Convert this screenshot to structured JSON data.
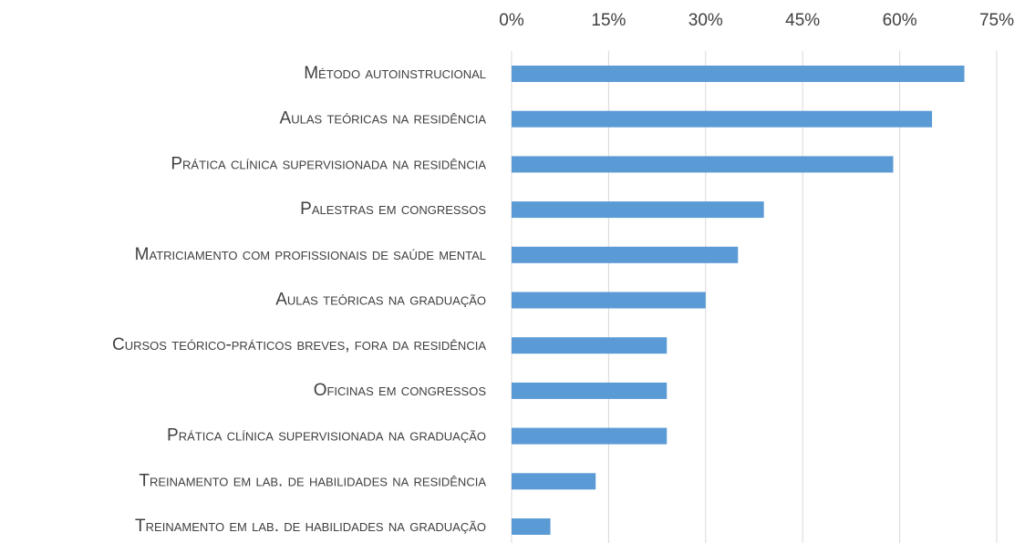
{
  "chart_data": {
    "type": "bar",
    "orientation": "horizontal",
    "categories": [
      "Método autoinstrucional",
      "Aulas teóricas na residência",
      "Prática clínica supervisionada na residência",
      "Palestras em congressos",
      "Matriciamento com profissionais de saúde mental",
      "Aulas teóricas na graduação",
      "Cursos teórico-práticos breves, fora da residência",
      "Oficinas em congressos",
      "Prática clínica supervisionada na graduação",
      "Treinamento em lab. de habilidades na residência",
      "Treinamento em lab. de habilidades na graduação"
    ],
    "values": [
      70,
      65,
      59,
      39,
      35,
      30,
      24,
      24,
      24,
      13,
      6
    ],
    "color": "#5b9bd5",
    "xlim": [
      0,
      75
    ],
    "xticks": [
      {
        "value": 0,
        "label": "0%"
      },
      {
        "value": 15,
        "label": "15%"
      },
      {
        "value": 30,
        "label": "30%"
      },
      {
        "value": 45,
        "label": "45%"
      },
      {
        "value": 60,
        "label": "60%"
      },
      {
        "value": 75,
        "label": "75%"
      }
    ],
    "grid": true
  }
}
